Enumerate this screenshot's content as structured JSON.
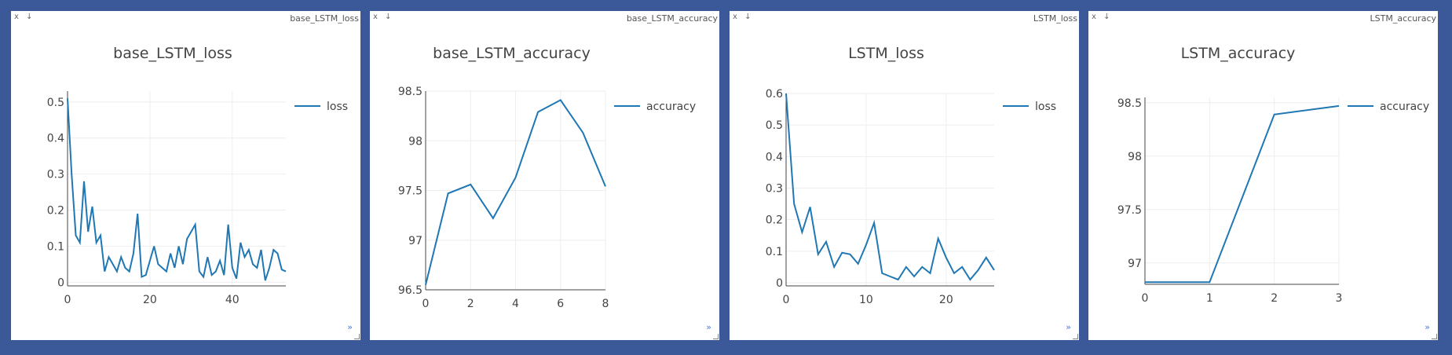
{
  "window_controls": {
    "close_label": "x",
    "minimize_label": "↓"
  },
  "panels": [
    {
      "header": "base_LSTM_loss",
      "expand_label": "»"
    },
    {
      "header": "base_LSTM_accuracy",
      "expand_label": "»"
    },
    {
      "header": "LSTM_loss",
      "expand_label": "»"
    },
    {
      "header": "LSTM_accuracy",
      "expand_label": "»"
    }
  ],
  "colors": {
    "background": "#3b5998",
    "line": "#1f77b4",
    "grid": "#eeeeee",
    "panel": "#ffffff"
  },
  "chart_data": [
    {
      "type": "line",
      "title": "base_LSTM_loss",
      "xlim": [
        0,
        53
      ],
      "ylim": [
        -0.01,
        0.53
      ],
      "xticks": [
        0,
        20,
        40
      ],
      "yticks": [
        0,
        0.1,
        0.2,
        0.3,
        0.4,
        0.5
      ],
      "legend_position": "top-right",
      "grid": true,
      "series": [
        {
          "name": "loss",
          "x": [
            0,
            1,
            2,
            3,
            4,
            5,
            6,
            7,
            8,
            9,
            10,
            11,
            12,
            13,
            14,
            15,
            16,
            17,
            18,
            19,
            20,
            21,
            22,
            23,
            24,
            25,
            26,
            27,
            28,
            29,
            30,
            31,
            32,
            33,
            34,
            35,
            36,
            37,
            38,
            39,
            40,
            41,
            42,
            43,
            44,
            45,
            46,
            47,
            48,
            49,
            50,
            51,
            52,
            53
          ],
          "y": [
            0.51,
            0.3,
            0.13,
            0.11,
            0.28,
            0.14,
            0.21,
            0.11,
            0.13,
            0.03,
            0.07,
            0.05,
            0.03,
            0.07,
            0.04,
            0.03,
            0.08,
            0.19,
            0.015,
            0.02,
            0.06,
            0.1,
            0.05,
            0.04,
            0.03,
            0.08,
            0.04,
            0.1,
            0.05,
            0.12,
            0.14,
            0.16,
            0.03,
            0.015,
            0.07,
            0.02,
            0.03,
            0.06,
            0.02,
            0.16,
            0.04,
            0.01,
            0.11,
            0.07,
            0.09,
            0.05,
            0.04,
            0.09,
            0.005,
            0.04,
            0.09,
            0.08,
            0.035,
            0.03
          ]
        }
      ]
    },
    {
      "type": "line",
      "title": "base_LSTM_accuracy",
      "xlim": [
        0,
        8
      ],
      "ylim": [
        96.5,
        98.5
      ],
      "xticks": [
        0,
        2,
        4,
        6,
        8
      ],
      "yticks": [
        96.5,
        97,
        97.5,
        98,
        98.5
      ],
      "legend_position": "top-right",
      "grid": true,
      "series": [
        {
          "name": "accuracy",
          "x": [
            0,
            1,
            2,
            3,
            4,
            5,
            6,
            7,
            8
          ],
          "y": [
            96.55,
            97.47,
            97.56,
            97.22,
            97.63,
            98.29,
            98.41,
            98.08,
            97.54
          ]
        }
      ]
    },
    {
      "type": "line",
      "title": "LSTM_loss",
      "xlim": [
        0,
        26
      ],
      "ylim": [
        -0.01,
        0.6
      ],
      "xticks": [
        0,
        10,
        20
      ],
      "yticks": [
        0,
        0.1,
        0.2,
        0.3,
        0.4,
        0.5,
        0.6
      ],
      "legend_position": "top-right",
      "grid": true,
      "series": [
        {
          "name": "loss",
          "x": [
            0,
            1,
            2,
            3,
            4,
            5,
            6,
            7,
            8,
            9,
            10,
            11,
            12,
            13,
            14,
            15,
            16,
            17,
            18,
            19,
            20,
            21,
            22,
            23,
            24,
            25,
            26
          ],
          "y": [
            0.6,
            0.25,
            0.16,
            0.24,
            0.09,
            0.13,
            0.05,
            0.095,
            0.09,
            0.06,
            0.12,
            0.19,
            0.03,
            0.02,
            0.01,
            0.05,
            0.02,
            0.05,
            0.03,
            0.14,
            0.08,
            0.03,
            0.05,
            0.01,
            0.04,
            0.08,
            0.04
          ]
        }
      ]
    },
    {
      "type": "line",
      "title": "LSTM_accuracy",
      "xlim": [
        0,
        3
      ],
      "ylim": [
        96.8,
        98.55
      ],
      "xticks": [
        0,
        1,
        2,
        3
      ],
      "yticks": [
        97,
        97.5,
        98,
        98.5
      ],
      "legend_position": "top-right",
      "grid": true,
      "series": [
        {
          "name": "accuracy",
          "x": [
            0,
            1,
            2,
            3
          ],
          "y": [
            96.82,
            96.82,
            98.39,
            98.47
          ]
        }
      ]
    }
  ]
}
